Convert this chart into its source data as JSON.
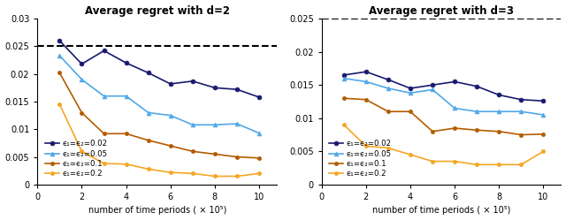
{
  "x": [
    1,
    2,
    3,
    4,
    5,
    6,
    7,
    8,
    9,
    10
  ],
  "d2": {
    "eps002": [
      0.026,
      0.0218,
      0.0242,
      0.022,
      0.0202,
      0.0182,
      0.0187,
      0.0175,
      0.0172,
      0.0158
    ],
    "eps005": [
      0.0233,
      0.019,
      0.016,
      0.016,
      0.013,
      0.0125,
      0.0108,
      0.0108,
      0.011,
      0.0093
    ],
    "eps01": [
      0.0202,
      0.013,
      0.0092,
      0.0092,
      0.008,
      0.007,
      0.006,
      0.0055,
      0.005,
      0.0048
    ],
    "eps02": [
      0.0145,
      0.006,
      0.0038,
      0.0037,
      0.0028,
      0.0022,
      0.002,
      0.0015,
      0.0015,
      0.002
    ]
  },
  "d3": {
    "eps002": [
      0.0165,
      0.017,
      0.0158,
      0.0145,
      0.015,
      0.0155,
      0.0148,
      0.0135,
      0.0128,
      0.0126
    ],
    "eps005": [
      0.016,
      0.0155,
      0.0145,
      0.0138,
      0.0143,
      0.0115,
      0.011,
      0.011,
      0.011,
      0.0105
    ],
    "eps01": [
      0.013,
      0.0128,
      0.011,
      0.011,
      0.008,
      0.0085,
      0.0082,
      0.008,
      0.0075,
      0.0076
    ],
    "eps02": [
      0.009,
      0.0058,
      0.0055,
      0.0045,
      0.0035,
      0.0035,
      0.003,
      0.003,
      0.003,
      0.005
    ]
  },
  "dashed_d2": 0.025,
  "dashed_d3": 0.025,
  "colors": {
    "eps002": "#191970",
    "eps005": "#4fa8e8",
    "eps01": "#b35c00",
    "eps02": "#f5a623"
  },
  "title_d2": "Average regret with d=2",
  "title_d3": "Average regret with d=3",
  "xlabel": "number of time periods ( × 10⁵)",
  "ylim_d2": [
    0,
    0.03
  ],
  "ylim_d3": [
    0,
    0.025
  ],
  "yticks_d2": [
    0,
    0.005,
    0.01,
    0.015,
    0.02,
    0.025,
    0.03
  ],
  "yticks_d3": [
    0,
    0.005,
    0.01,
    0.015,
    0.02,
    0.025
  ],
  "legend_labels": [
    "ϵ₁=ϵ₂=0.02",
    "ϵ₁=ϵ₂=0.05",
    "ϵ₁=ϵ₂=0.1",
    "ϵ₁=ϵ₂=0.2"
  ],
  "figsize": [
    6.4,
    2.49
  ],
  "dpi": 100
}
